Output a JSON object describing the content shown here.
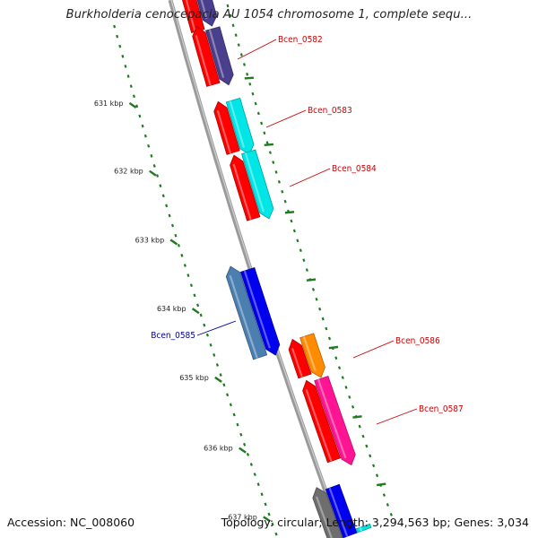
{
  "title": "Burkholderia cenocepacia AU 1054 chromosome 1, complete sequ...",
  "footer": {
    "accession": "Accession: NC_008060",
    "summary": "Topology: circular; Length: 3,294,563 bp; Genes: 3,034"
  },
  "colors": {
    "backbone": "#8a8a8a",
    "ticks": "#1f7a1f",
    "red": "#ff0000",
    "navy": "#4a3f8c",
    "cyan": "#00e5e5",
    "steelblue": "#4a7fb0",
    "blue": "#0000ee",
    "orange": "#ff8c00",
    "pink": "#ff1493",
    "gray": "#6e6e6e",
    "label_red": "#cc0000",
    "label_blue": "#000099"
  },
  "kbp_labels": [
    "631 kbp",
    "632 kbp",
    "633 kbp",
    "634 kbp",
    "635 kbp",
    "636 kbp",
    "637 kbp"
  ],
  "gene_labels": [
    {
      "text": "Bcen_0582",
      "color": "label_red"
    },
    {
      "text": "Bcen_0583",
      "color": "label_red"
    },
    {
      "text": "Bcen_0584",
      "color": "label_red"
    },
    {
      "text": "Bcen_0585",
      "color": "label_blue"
    },
    {
      "text": "Bcen_0586",
      "color": "label_red"
    },
    {
      "text": "Bcen_0587",
      "color": "label_red"
    }
  ],
  "features": [
    {
      "track": "rev",
      "color": "red"
    },
    {
      "track": "fwd",
      "color": "navy"
    },
    {
      "track": "rev",
      "color": "red"
    },
    {
      "track": "fwd",
      "color": "navy"
    },
    {
      "track": "rev",
      "color": "red"
    },
    {
      "track": "fwd",
      "color": "cyan"
    },
    {
      "track": "rev",
      "color": "red"
    },
    {
      "track": "fwd",
      "color": "cyan"
    },
    {
      "track": "rev",
      "color": "steelblue"
    },
    {
      "track": "fwd",
      "color": "blue"
    },
    {
      "track": "rev",
      "color": "red"
    },
    {
      "track": "fwd",
      "color": "orange"
    },
    {
      "track": "rev",
      "color": "red"
    },
    {
      "track": "fwd",
      "color": "pink"
    },
    {
      "track": "rev",
      "color": "gray"
    },
    {
      "track": "fwd",
      "color": "blue"
    },
    {
      "track": "fwd",
      "color": "cyan"
    }
  ]
}
